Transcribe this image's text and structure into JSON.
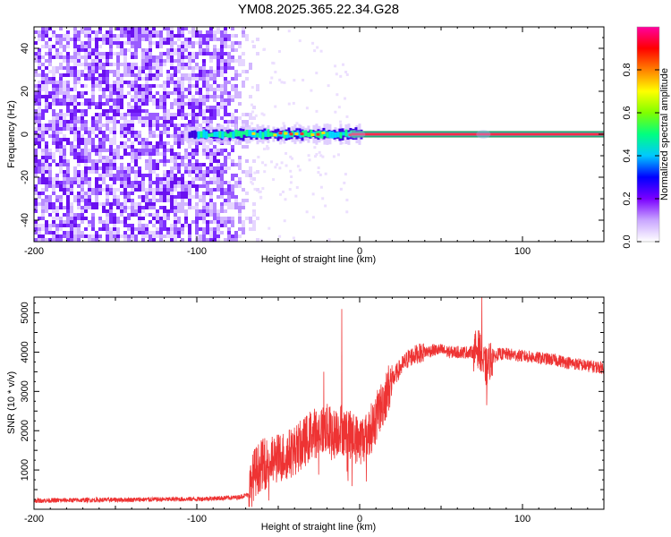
{
  "figure_title": "YM08.2025.365.22.34.G28",
  "chart_data": [
    {
      "id": "spectrogram",
      "type": "heatmap",
      "title": "YM08.2025.365.22.34.G28",
      "xlabel": "Height of straight line (km)",
      "ylabel": "Frequency (Hz)",
      "xlim": [
        -200,
        150
      ],
      "ylim": [
        -50,
        50
      ],
      "xticks": [
        -200,
        -100,
        0,
        100
      ],
      "xtick_labels": [
        "-200",
        "-100",
        "0",
        "100"
      ],
      "yticks": [
        -40,
        -20,
        0,
        20,
        40
      ],
      "ytick_labels": [
        "-40",
        "-20",
        "0",
        "20",
        "40"
      ],
      "noise_region_x": [
        -200,
        -68
      ],
      "signal_line_frequency_hz": 0,
      "signal_start_x": -108,
      "strong_signal_start_x": -5,
      "secondary_blip_x": 76,
      "colorbar": {
        "label": "Normalized spectral amplitude",
        "range": [
          0.0,
          1.0
        ],
        "ticks": [
          0.0,
          0.2,
          0.4,
          0.6,
          0.8
        ],
        "tick_labels": [
          "0.0",
          "0.2",
          "0.4",
          "0.6",
          "0.8"
        ],
        "colors": [
          "#ffffff",
          "#c9a6ff",
          "#7a00ff",
          "#0000ff",
          "#00c8ff",
          "#00ff80",
          "#80ff00",
          "#ffff00",
          "#ff8000",
          "#ff0000",
          "#ff00a0"
        ]
      }
    },
    {
      "id": "snr",
      "type": "line",
      "xlabel": "Height of straight line (km)",
      "ylabel": "SNR (10 * v/v)",
      "xlim": [
        -200,
        150
      ],
      "ylim": [
        0,
        5400
      ],
      "xticks": [
        -200,
        -100,
        0,
        100
      ],
      "xtick_labels": [
        "-200",
        "-100",
        "0",
        "100"
      ],
      "yticks": [
        1000,
        2000,
        3000,
        4000,
        5000
      ],
      "ytick_labels": [
        "1000",
        "2000",
        "3000",
        "4000",
        "5000"
      ],
      "line_color": "#ee3333",
      "series": [
        {
          "name": "SNR",
          "x": [
            -200,
            -150,
            -100,
            -75,
            -68,
            -65,
            -60,
            -55,
            -50,
            -45,
            -40,
            -35,
            -30,
            -25,
            -20,
            -15,
            -12,
            -10,
            -8,
            -5,
            0,
            5,
            10,
            15,
            20,
            25,
            30,
            35,
            40,
            45,
            50,
            55,
            60,
            65,
            70,
            72,
            74,
            76,
            78,
            80,
            85,
            90,
            100,
            110,
            120,
            130,
            140,
            150
          ],
          "values": [
            220,
            240,
            260,
            300,
            380,
            900,
            1150,
            1200,
            1300,
            1380,
            1500,
            1650,
            1900,
            2000,
            2050,
            1900,
            2100,
            2000,
            1900,
            1850,
            1750,
            1900,
            2300,
            2800,
            3300,
            3600,
            3850,
            3950,
            4000,
            4050,
            4050,
            4000,
            4000,
            4000,
            4000,
            4100,
            4050,
            3700,
            3600,
            3800,
            3950,
            3950,
            3900,
            3850,
            3800,
            3720,
            3650,
            3600
          ],
          "spikes": [
            {
              "x": -11,
              "value": 5100
            },
            {
              "x": -22,
              "value": 3500
            },
            {
              "x": 75,
              "value": 5400
            },
            {
              "x": 78,
              "value": 2650
            }
          ]
        }
      ]
    }
  ]
}
